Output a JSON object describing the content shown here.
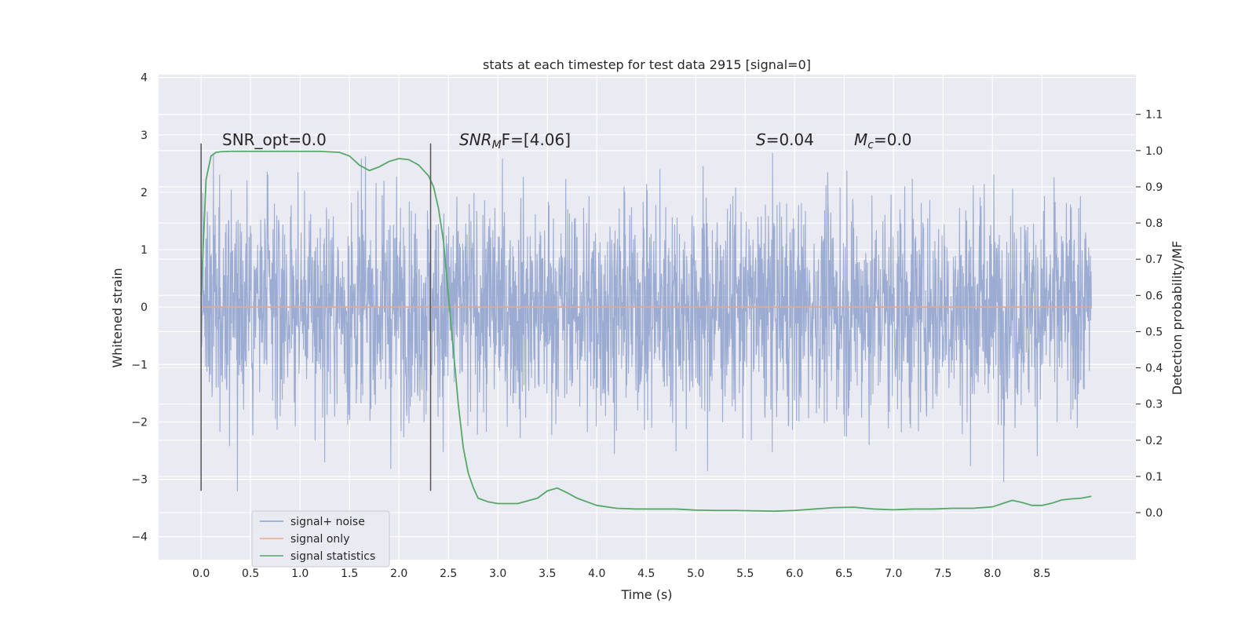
{
  "chart_data": {
    "type": "line",
    "title": "stats at each timestep for test data 2915 [signal=0]",
    "xlabel": "Time (s)",
    "ylabel": "Whitened strain",
    "y2label": "Detection probability/MF",
    "xlim": [
      -0.43,
      9.45
    ],
    "ylim": [
      -4.4,
      4.05
    ],
    "y2lim": [
      -0.13,
      1.21
    ],
    "x_ticks": [
      0.0,
      0.5,
      1.0,
      1.5,
      2.0,
      2.5,
      3.0,
      3.5,
      4.0,
      4.5,
      5.0,
      5.5,
      6.0,
      6.5,
      7.0,
      7.5,
      8.0,
      8.5
    ],
    "x_tick_labels": [
      "0.0",
      "0.5",
      "1.0",
      "1.5",
      "2.0",
      "2.5",
      "3.0",
      "3.5",
      "4.0",
      "4.5",
      "5.0",
      "5.5",
      "6.0",
      "6.5",
      "7.0",
      "7.5",
      "8.0",
      "8.5"
    ],
    "y_ticks": [
      -4,
      -3,
      -2,
      -1,
      0,
      1,
      2,
      3,
      4
    ],
    "y_tick_labels": [
      "−4",
      "−3",
      "−2",
      "−1",
      "0",
      "1",
      "2",
      "3",
      "4"
    ],
    "y2_ticks": [
      0.0,
      0.1,
      0.2,
      0.3,
      0.4,
      0.5,
      0.6,
      0.7,
      0.8,
      0.9,
      1.0,
      1.1
    ],
    "y2_tick_labels": [
      "0.0",
      "0.1",
      "0.2",
      "0.3",
      "0.4",
      "0.5",
      "0.6",
      "0.7",
      "0.8",
      "0.9",
      "1.0",
      "1.1"
    ],
    "grid": true,
    "legend_position": "lower-left",
    "legend": [
      "signal+ noise",
      "signal only",
      "signal statistics"
    ],
    "series": [
      {
        "name": "signal+ noise",
        "axis": "left",
        "color": "#8da0cb",
        "x_range": [
          0.0,
          9.0
        ],
        "amplitude_range": [
          -4.0,
          3.65
        ],
        "description_value": "noise"
      },
      {
        "name": "signal only",
        "axis": "left",
        "color": "#e5a98a",
        "x": [
          0.0,
          9.0
        ],
        "y": [
          0.0,
          0.0
        ]
      },
      {
        "name": "signal statistics",
        "axis": "right",
        "color": "#55a868",
        "x": [
          0.0,
          0.05,
          0.1,
          0.15,
          0.2,
          0.3,
          0.5,
          0.8,
          1.0,
          1.2,
          1.4,
          1.5,
          1.6,
          1.7,
          1.8,
          1.9,
          2.0,
          2.1,
          2.2,
          2.3,
          2.35,
          2.4,
          2.45,
          2.5,
          2.55,
          2.6,
          2.65,
          2.7,
          2.75,
          2.8,
          2.9,
          3.0,
          3.2,
          3.4,
          3.5,
          3.6,
          3.7,
          3.8,
          4.0,
          4.2,
          4.4,
          4.6,
          4.8,
          5.0,
          5.2,
          5.4,
          5.6,
          5.8,
          6.0,
          6.2,
          6.4,
          6.6,
          6.8,
          7.0,
          7.2,
          7.4,
          7.6,
          7.8,
          8.0,
          8.1,
          8.2,
          8.3,
          8.4,
          8.5,
          8.6,
          8.7,
          8.8,
          8.9,
          9.0
        ],
        "y": [
          0.6,
          0.92,
          0.985,
          0.995,
          0.997,
          0.998,
          0.998,
          0.998,
          0.998,
          0.998,
          0.995,
          0.985,
          0.96,
          0.945,
          0.955,
          0.97,
          0.978,
          0.975,
          0.96,
          0.93,
          0.9,
          0.84,
          0.75,
          0.6,
          0.45,
          0.3,
          0.18,
          0.11,
          0.07,
          0.04,
          0.03,
          0.025,
          0.025,
          0.04,
          0.06,
          0.068,
          0.055,
          0.04,
          0.02,
          0.012,
          0.01,
          0.01,
          0.01,
          0.007,
          0.006,
          0.006,
          0.005,
          0.004,
          0.006,
          0.01,
          0.014,
          0.015,
          0.01,
          0.008,
          0.01,
          0.01,
          0.012,
          0.012,
          0.016,
          0.025,
          0.034,
          0.028,
          0.02,
          0.02,
          0.026,
          0.035,
          0.038,
          0.04,
          0.045
        ]
      }
    ],
    "vertical_lines": [
      {
        "x": 0.0,
        "y_from": -3.2,
        "y_to": 2.85
      },
      {
        "x": 2.32,
        "y_from": -3.2,
        "y_to": 2.85
      }
    ],
    "annotations": [
      {
        "text": "SNR_opt=0.0",
        "x": 0.2,
        "y": 2.95
      },
      {
        "text_main": "SNR",
        "text_sub": "M",
        "text_rest": "F=[4.06]",
        "x": 2.6,
        "y": 2.95
      },
      {
        "text_main": "S",
        "text_rest": "=0.04",
        "x": 5.6,
        "y": 2.95
      },
      {
        "text_main": "M",
        "text_sub": "c",
        "text_rest": "=0.0",
        "x": 6.6,
        "y": 2.95
      }
    ]
  }
}
